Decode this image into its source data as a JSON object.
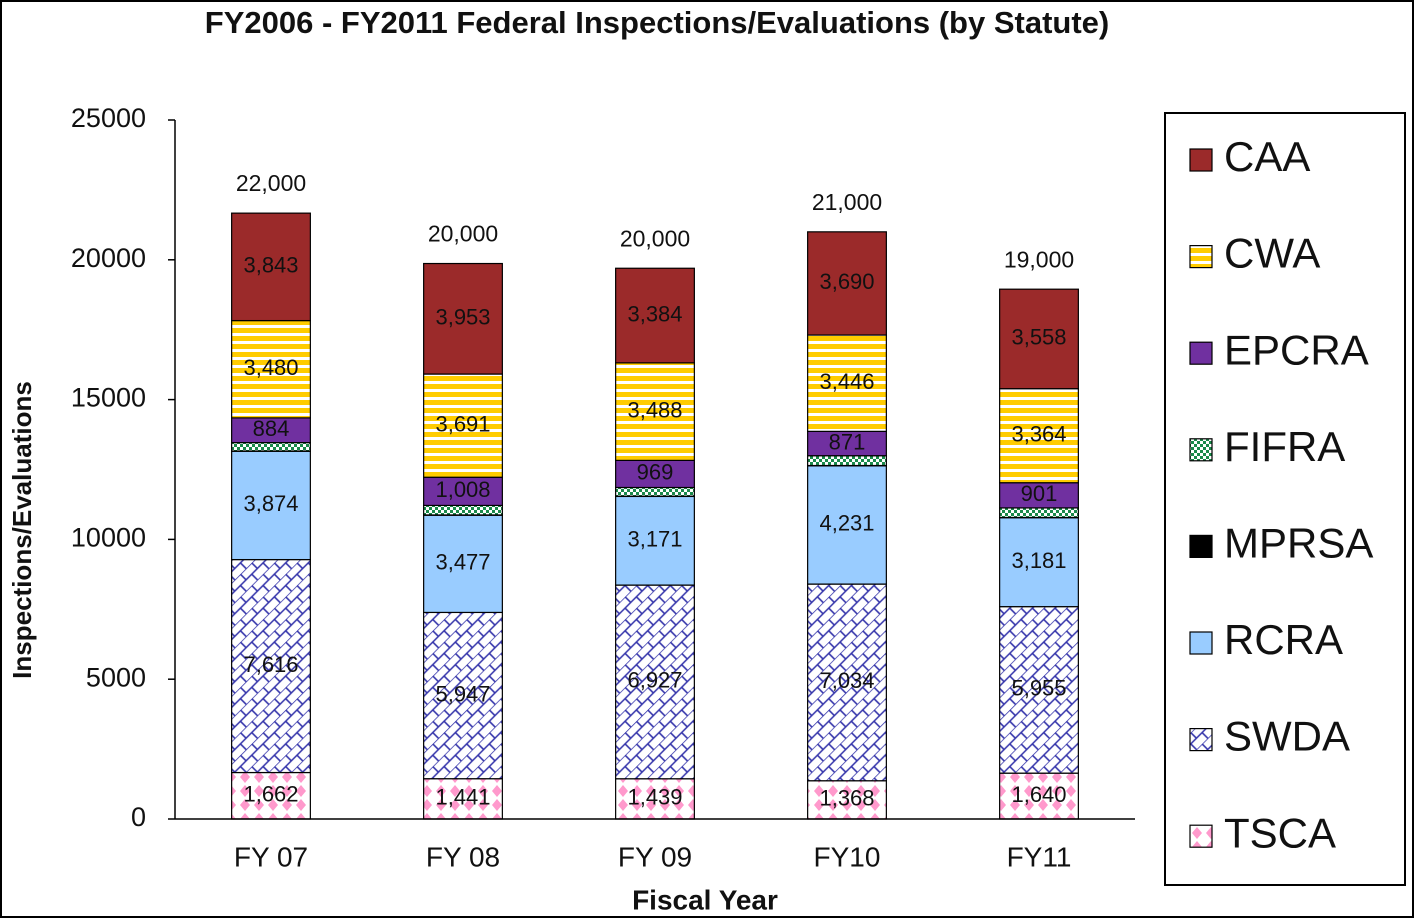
{
  "chart_data": {
    "type": "stacked_bar",
    "title": "FY2006 - FY2011 Federal Inspections/Evaluations (by Statute)",
    "x_label": "Fiscal Year",
    "y_label": "Inspections/Evaluations",
    "categories": [
      "FY 07",
      "FY 08",
      "FY 09",
      "FY10",
      "FY11"
    ],
    "ylim": [
      0,
      25000
    ],
    "yticks": [
      0,
      5000,
      10000,
      15000,
      20000,
      25000
    ],
    "grid": false,
    "legend": "right",
    "series": [
      {
        "name": "TSCA",
        "color": "#ff99cc",
        "fill_style": "diamonds",
        "values": [
          1662,
          1441,
          1439,
          1368,
          1640
        ],
        "value_labels": [
          "1,662",
          "1,441",
          "1,439",
          "1,368",
          "1,640"
        ]
      },
      {
        "name": "SWDA",
        "color": "#3333aa",
        "fill_style": "bricks",
        "values": [
          7616,
          5947,
          6927,
          7034,
          5955
        ],
        "value_labels": [
          "7,616",
          "5,947",
          "6,927",
          "7,034",
          "5,955"
        ]
      },
      {
        "name": "RCRA",
        "color": "#99ccff",
        "fill_style": "solid",
        "values": [
          3874,
          3477,
          3171,
          4231,
          3181
        ],
        "value_labels": [
          "3,874",
          "3,477",
          "3,171",
          "4,231",
          "3,181"
        ]
      },
      {
        "name": "MPRSA",
        "color": "#000000",
        "fill_style": "solid",
        "values": [
          10,
          10,
          10,
          10,
          10
        ]
      },
      {
        "name": "FIFRA",
        "color": "#1a8a4a",
        "fill_style": "checker",
        "values": [
          300,
          340,
          310,
          350,
          340
        ]
      },
      {
        "name": "EPCRA",
        "color": "#7030a0",
        "fill_style": "solid",
        "values": [
          884,
          1008,
          969,
          871,
          901
        ],
        "value_labels": [
          "884",
          "1,008",
          "969",
          "871",
          "901"
        ]
      },
      {
        "name": "CWA",
        "color": "#ffcc00",
        "fill_style": "stripes",
        "values": [
          3480,
          3691,
          3488,
          3446,
          3364
        ],
        "value_labels": [
          "3,480",
          "3,691",
          "3,488",
          "3,446",
          "3,364"
        ]
      },
      {
        "name": "CAA",
        "color": "#9b2a2a",
        "fill_style": "solid",
        "values": [
          3843,
          3953,
          3384,
          3690,
          3558
        ],
        "value_labels": [
          "3,843",
          "3,953",
          "3,384",
          "3,690",
          "3,558"
        ]
      }
    ],
    "totals": {
      "values": [
        22000,
        20000,
        20000,
        21000,
        19000
      ],
      "value_labels": [
        "22,000",
        "20,000",
        "20,000",
        "21,000",
        "19,000"
      ]
    }
  }
}
